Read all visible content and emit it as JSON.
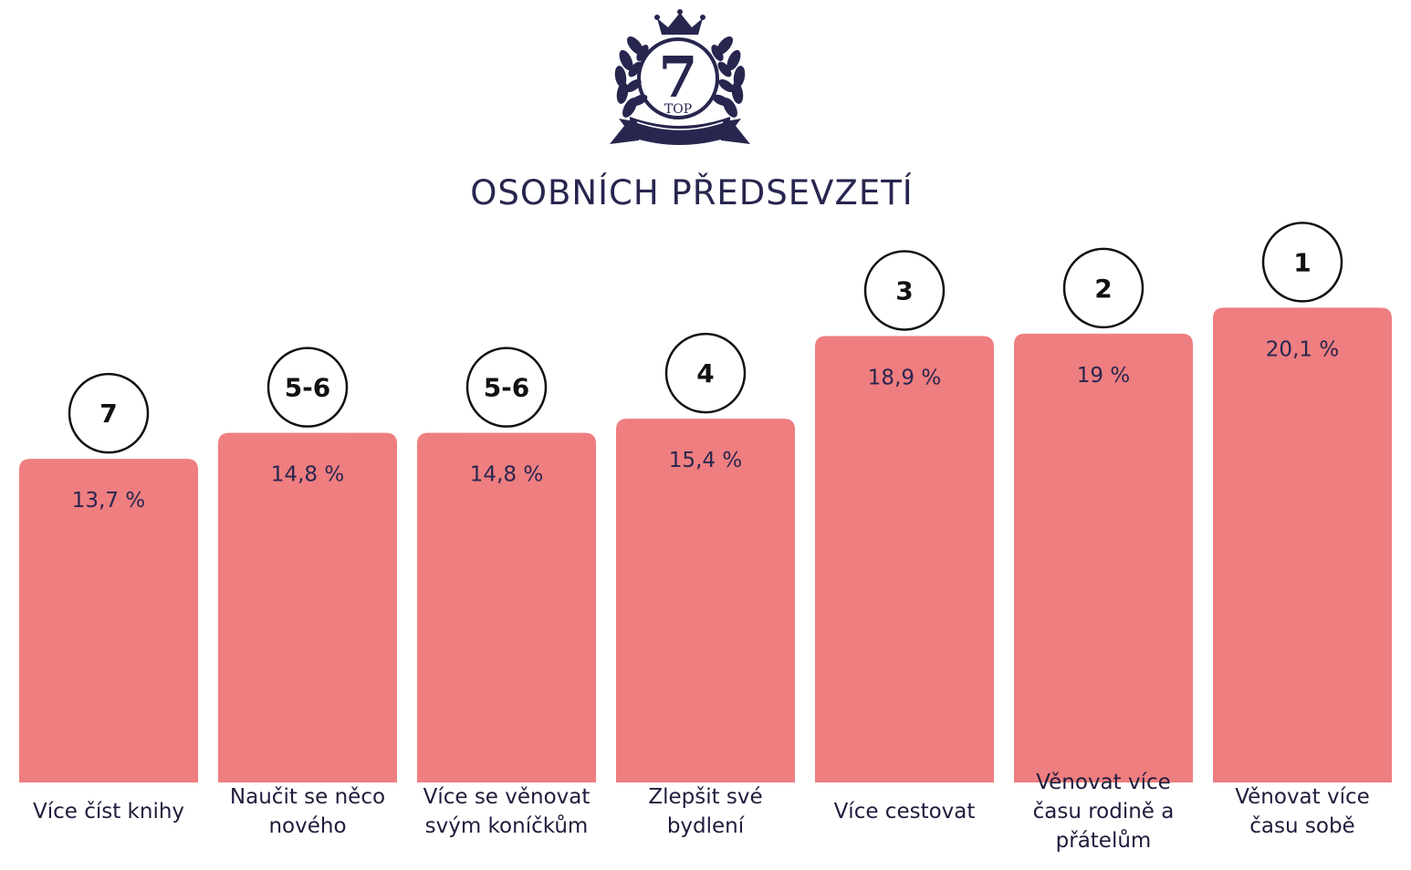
{
  "logo": {
    "number": "7",
    "subtext": "TOP",
    "icon": "crown-laurel-badge-icon",
    "color": "#27264f"
  },
  "chart_data": {
    "type": "bar",
    "title": "OSOBNÍCH PŘEDSEVZETÍ",
    "categories": [
      [
        "Více číst knihy"
      ],
      [
        "Naučit se něco",
        "nového"
      ],
      [
        "Více se věnovat",
        "svým koníčkům"
      ],
      [
        "Zlepšit své",
        "bydlení"
      ],
      [
        "Více cestovat"
      ],
      [
        "Věnovat více",
        "času rodině a",
        "přátelům"
      ],
      [
        "Věnovat více",
        "času sobě"
      ]
    ],
    "values": [
      13.7,
      14.8,
      14.8,
      15.4,
      18.9,
      19,
      20.1
    ],
    "value_labels": [
      "13,7 %",
      "14,8 %",
      "14,8 %",
      "15,4 %",
      "18,9 %",
      "19 %",
      "20,1 %"
    ],
    "ranks": [
      "7",
      "5-6",
      "5-6",
      "4",
      "3",
      "2",
      "1"
    ],
    "bar_color": "#ef7e80",
    "text_color": "#27264f",
    "grid": false,
    "legend": "none"
  }
}
